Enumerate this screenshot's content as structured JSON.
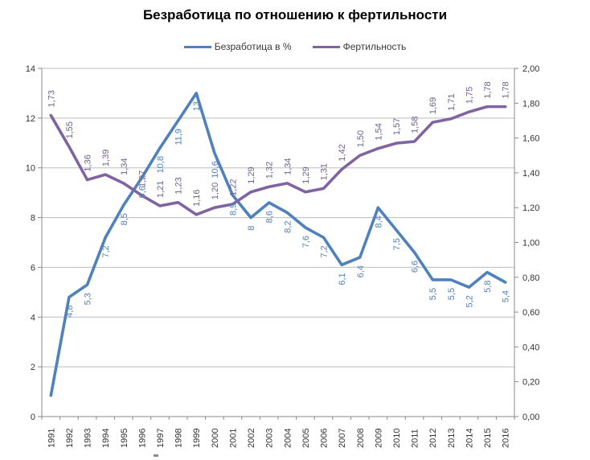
{
  "title": "Безработица по отношению к фертильности",
  "legend": [
    {
      "label": "Безработица в %",
      "color": "#4F81BD"
    },
    {
      "label": "Фертильность",
      "color": "#8064A2"
    }
  ],
  "colors": {
    "gridline": "#BDBDBD",
    "axis_line": "#898989",
    "tick_text": "#333333"
  },
  "chart_data": {
    "type": "line",
    "title": "Безработица по отношению к фертильности",
    "categories": [
      "1991",
      "1992",
      "1993",
      "1994",
      "1995",
      "1996",
      "1997",
      "1998",
      "1999",
      "2000",
      "2001",
      "2002",
      "2003",
      "2004",
      "2005",
      "2006",
      "2007",
      "2008",
      "2009",
      "2010",
      "2011",
      "2012",
      "2013",
      "2014",
      "2015",
      "2016"
    ],
    "series": [
      {
        "name": "Безработица в %",
        "axis": "left",
        "color": "#4F81BD",
        "label_color": "#4F81BD",
        "label_side": "below",
        "values": [
          0.85,
          4.8,
          5.3,
          7.2,
          8.5,
          9.6,
          10.8,
          11.9,
          13,
          10.6,
          8.9,
          8,
          8.6,
          8.2,
          7.6,
          7.2,
          6.1,
          6.4,
          8.4,
          7.5,
          6.6,
          5.5,
          5.5,
          5.2,
          5.8,
          5.4
        ],
        "labels": [
          null,
          "4,8",
          "5,3",
          "7,2",
          "8,5",
          "9,6",
          "10,8",
          "11,9",
          "13",
          "10,6",
          "8,9",
          "8",
          "8,6",
          "8,2",
          "7,6",
          "7,2",
          "6,1",
          "6,4",
          "8,4",
          "7,5",
          "6,6",
          "5,5",
          "5,5",
          "5,2",
          "5,8",
          "5,4"
        ]
      },
      {
        "name": "Фертильность",
        "axis": "right",
        "color": "#8064A2",
        "label_color": "#71618E",
        "label_side": "above",
        "values": [
          1.73,
          1.55,
          1.36,
          1.39,
          1.34,
          1.27,
          1.21,
          1.23,
          1.16,
          1.2,
          1.22,
          1.29,
          1.32,
          1.34,
          1.29,
          1.31,
          1.42,
          1.5,
          1.54,
          1.57,
          1.58,
          1.69,
          1.71,
          1.75,
          1.78,
          1.78
        ],
        "labels": [
          "1,73",
          "1,55",
          "1,36",
          "1,39",
          "1,34",
          "1,27",
          "1,21",
          "1,23",
          "1,16",
          "1,20",
          "1,22",
          "1,29",
          "1,32",
          "1,34",
          "1,29",
          "1,31",
          "1,42",
          "1,50",
          "1,54",
          "1,57",
          "1,58",
          "1,69",
          "1,71",
          "1,75",
          "1,78",
          "1,78"
        ]
      }
    ],
    "left_axis": {
      "min": 0,
      "max": 14,
      "tick_labels": [
        "0",
        "2",
        "4",
        "6",
        "8",
        "10",
        "12",
        "14"
      ]
    },
    "right_axis": {
      "min": 0,
      "max": 2,
      "tick_labels": [
        "0,00",
        "0,20",
        "0,40",
        "0,60",
        "0,80",
        "1,00",
        "1,20",
        "1,40",
        "1,60",
        "1,80",
        "2,00"
      ]
    },
    "grid": true,
    "legend_position": "top"
  }
}
